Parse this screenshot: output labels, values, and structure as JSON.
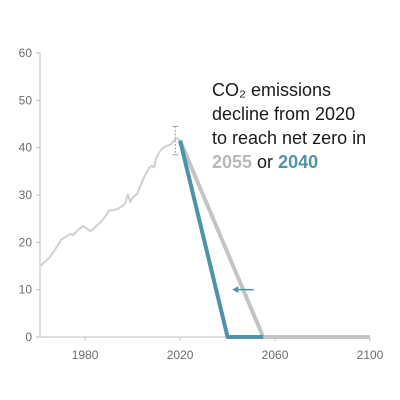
{
  "chart_data": {
    "type": "line",
    "title": "",
    "xlabel": "",
    "ylabel": "",
    "xlim": [
      1961,
      2100
    ],
    "ylim": [
      0,
      60
    ],
    "x_ticks": [
      1980,
      2020,
      2060,
      2100
    ],
    "y_ticks": [
      0,
      10,
      20,
      30,
      40,
      50,
      60
    ],
    "grid": false,
    "colors": {
      "historical": "#d0d0d0",
      "slow": "#c4c4c4",
      "fast": "#4f93a8",
      "axis": "#bfbfbf",
      "error_bar": "#a0a0a0",
      "arrow": "#4f93a8"
    },
    "series": [
      {
        "key": "historical",
        "x": [
          1961,
          1963,
          1965,
          1967,
          1969,
          1970,
          1972,
          1974,
          1975,
          1977,
          1979,
          1980,
          1982,
          1983,
          1985,
          1987,
          1989,
          1990,
          1992,
          1994,
          1996,
          1997,
          1998,
          1999,
          2000,
          2002,
          2004,
          2006,
          2007,
          2008,
          2009,
          2010,
          2012,
          2014,
          2016,
          2018,
          2019,
          2020
        ],
        "values": [
          15,
          15.8,
          16.8,
          18.2,
          19.8,
          20.6,
          21.2,
          21.8,
          21.5,
          22.6,
          23.4,
          23.2,
          22.4,
          22.6,
          23.6,
          24.5,
          25.8,
          26.7,
          26.8,
          27.1,
          27.8,
          28.4,
          30.1,
          28.5,
          29.4,
          30.3,
          32.8,
          34.9,
          35.7,
          36.2,
          35.8,
          37.9,
          39.6,
          40.3,
          40.7,
          41.8,
          42.0,
          41.5
        ]
      },
      {
        "key": "slow",
        "x": [
          2020,
          2055,
          2100
        ],
        "values": [
          41.5,
          0,
          0
        ]
      },
      {
        "key": "fast",
        "x": [
          2020,
          2040,
          2055
        ],
        "values": [
          41.5,
          0,
          0
        ]
      }
    ],
    "error_bar": {
      "x": 2018,
      "y_low": 38.5,
      "y_high": 44.5
    },
    "arrow": {
      "y": 10,
      "x_from": 2051,
      "x_to": 2042
    },
    "annotation": {
      "line1": "CO₂ emissions",
      "line2": "decline from 2020",
      "line3": "to reach net zero in",
      "year_slow": "2055",
      "connector": " or ",
      "year_fast": "2040"
    }
  }
}
